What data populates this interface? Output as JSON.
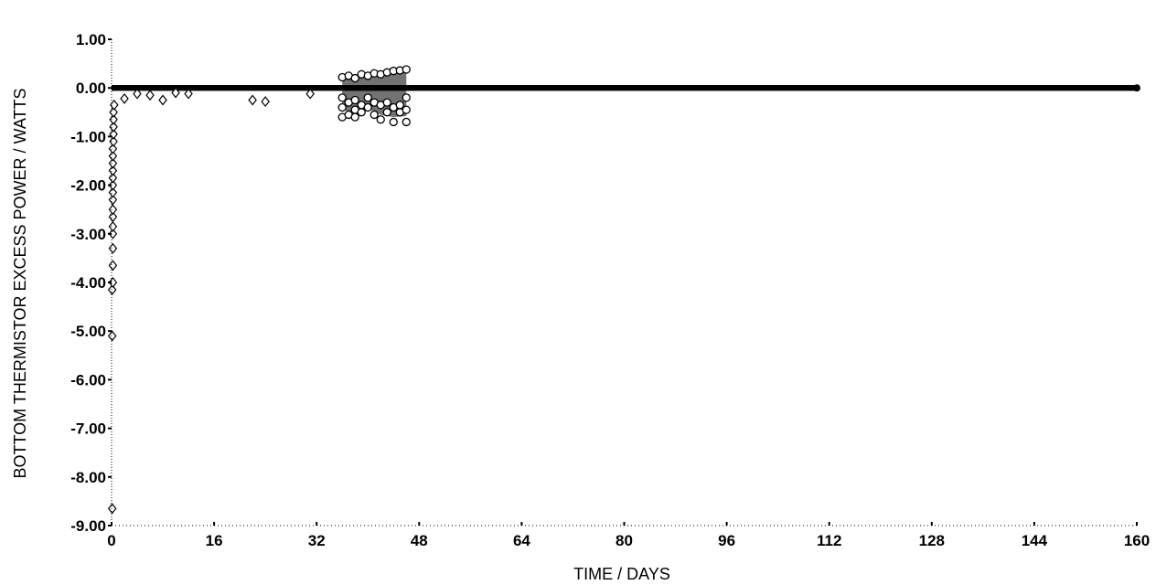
{
  "chart_data": {
    "type": "scatter",
    "title": "",
    "xlabel": "TIME / DAYS",
    "ylabel": "BOTTOM THERMISTOR EXCESS POWER / WATTS",
    "xlim": [
      0,
      160
    ],
    "ylim": [
      -9.0,
      1.0
    ],
    "x_ticks": [
      "0",
      "16",
      "32",
      "48",
      "64",
      "80",
      "96",
      "112",
      "128",
      "144",
      "160"
    ],
    "y_ticks": [
      "1.00",
      "0.00",
      "-1.00",
      "-2.00",
      "-3.00",
      "-4.00",
      "-5.00",
      "-6.00",
      "-7.00",
      "-8.00",
      "-9.00"
    ],
    "grid": false,
    "marker": "open circle/diamond",
    "color": "#000000",
    "baseline_band": {
      "x_start": 0,
      "x_end": 160,
      "y_low": -0.06,
      "y_high": 0.06
    },
    "early_outliers": [
      {
        "x": 0.1,
        "y": -8.65
      },
      {
        "x": 0.1,
        "y": -5.1
      },
      {
        "x": 0.1,
        "y": -4.15
      },
      {
        "x": 0.2,
        "y": -4.0
      },
      {
        "x": 0.2,
        "y": -3.65
      },
      {
        "x": 0.2,
        "y": -3.3
      },
      {
        "x": 0.2,
        "y": -3.0
      },
      {
        "x": 0.2,
        "y": -2.85
      },
      {
        "x": 0.2,
        "y": -2.65
      },
      {
        "x": 0.2,
        "y": -2.5
      },
      {
        "x": 0.2,
        "y": -2.3
      },
      {
        "x": 0.2,
        "y": -2.15
      },
      {
        "x": 0.2,
        "y": -2.0
      },
      {
        "x": 0.2,
        "y": -1.85
      },
      {
        "x": 0.2,
        "y": -1.7
      },
      {
        "x": 0.2,
        "y": -1.55
      },
      {
        "x": 0.2,
        "y": -1.4
      },
      {
        "x": 0.2,
        "y": -1.25
      },
      {
        "x": 0.3,
        "y": -1.1
      },
      {
        "x": 0.3,
        "y": -0.95
      },
      {
        "x": 0.3,
        "y": -0.8
      },
      {
        "x": 0.3,
        "y": -0.65
      },
      {
        "x": 0.3,
        "y": -0.5
      },
      {
        "x": 0.4,
        "y": -0.35
      },
      {
        "x": 2.0,
        "y": -0.22
      },
      {
        "x": 4.0,
        "y": -0.12
      },
      {
        "x": 6.0,
        "y": -0.15
      },
      {
        "x": 8.0,
        "y": -0.25
      },
      {
        "x": 10.0,
        "y": -0.1
      },
      {
        "x": 12.0,
        "y": -0.12
      },
      {
        "x": 22.0,
        "y": -0.25
      },
      {
        "x": 24.0,
        "y": -0.28
      },
      {
        "x": 31.0,
        "y": -0.12
      }
    ],
    "mid_cluster": {
      "x_start": 36,
      "x_end": 46,
      "points": [
        {
          "x": 36.0,
          "y": 0.22
        },
        {
          "x": 36.0,
          "y": -0.2
        },
        {
          "x": 36.0,
          "y": -0.4
        },
        {
          "x": 36.0,
          "y": -0.6
        },
        {
          "x": 37.0,
          "y": 0.25
        },
        {
          "x": 37.0,
          "y": -0.3
        },
        {
          "x": 37.0,
          "y": -0.55
        },
        {
          "x": 38.0,
          "y": 0.2
        },
        {
          "x": 38.0,
          "y": -0.25
        },
        {
          "x": 38.0,
          "y": -0.45
        },
        {
          "x": 38.0,
          "y": -0.6
        },
        {
          "x": 39.0,
          "y": 0.28
        },
        {
          "x": 39.0,
          "y": -0.35
        },
        {
          "x": 39.0,
          "y": -0.5
        },
        {
          "x": 40.0,
          "y": 0.25
        },
        {
          "x": 40.0,
          "y": -0.2
        },
        {
          "x": 40.0,
          "y": -0.4
        },
        {
          "x": 41.0,
          "y": 0.3
        },
        {
          "x": 41.0,
          "y": -0.3
        },
        {
          "x": 41.0,
          "y": -0.55
        },
        {
          "x": 42.0,
          "y": 0.28
        },
        {
          "x": 42.0,
          "y": -0.35
        },
        {
          "x": 42.0,
          "y": -0.65
        },
        {
          "x": 43.0,
          "y": 0.32
        },
        {
          "x": 43.0,
          "y": -0.3
        },
        {
          "x": 43.0,
          "y": -0.5
        },
        {
          "x": 44.0,
          "y": 0.35
        },
        {
          "x": 44.0,
          "y": -0.4
        },
        {
          "x": 44.0,
          "y": -0.7
        },
        {
          "x": 45.0,
          "y": 0.36
        },
        {
          "x": 45.0,
          "y": -0.35
        },
        {
          "x": 45.0,
          "y": -0.5
        },
        {
          "x": 46.0,
          "y": 0.38
        },
        {
          "x": 46.0,
          "y": -0.2
        },
        {
          "x": 46.0,
          "y": -0.45
        },
        {
          "x": 46.0,
          "y": -0.7
        }
      ],
      "upper_envelope": [
        {
          "x": 36.0,
          "y": 0.22
        },
        {
          "x": 38.0,
          "y": 0.25
        },
        {
          "x": 40.0,
          "y": 0.27
        },
        {
          "x": 42.0,
          "y": 0.29
        },
        {
          "x": 44.0,
          "y": 0.33
        },
        {
          "x": 46.0,
          "y": 0.38
        }
      ],
      "lower_envelope": [
        {
          "x": 36.0,
          "y": -0.45
        },
        {
          "x": 38.0,
          "y": -0.5
        },
        {
          "x": 40.0,
          "y": -0.42
        },
        {
          "x": 42.0,
          "y": -0.55
        },
        {
          "x": 44.0,
          "y": -0.6
        },
        {
          "x": 46.0,
          "y": -0.58
        }
      ]
    }
  }
}
